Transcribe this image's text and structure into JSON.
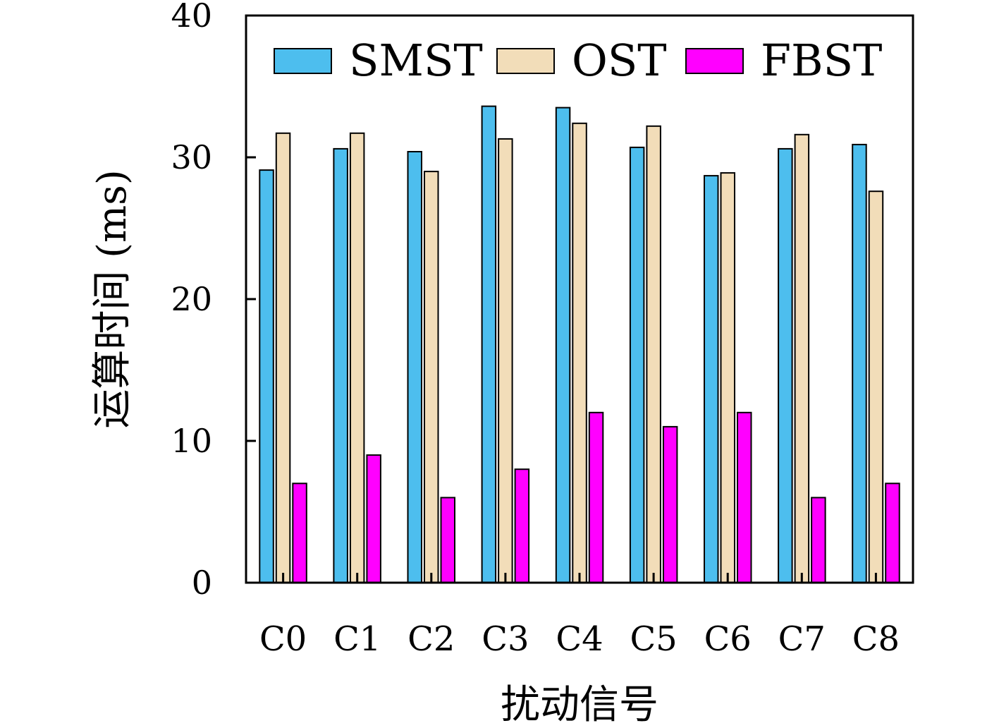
{
  "chart_data": {
    "type": "bar",
    "xlabel": "扰动信号",
    "ylabel": "运算时间 (ms)",
    "ylim": [
      0,
      40
    ],
    "yticks": [
      0,
      10,
      20,
      30,
      40
    ],
    "grid": false,
    "legend_position": "top",
    "categories": [
      "C0",
      "C1",
      "C2",
      "C3",
      "C4",
      "C5",
      "C6",
      "C7",
      "C8"
    ],
    "series": [
      {
        "name": "SMST",
        "color": "#4dbeee",
        "values": [
          29.1,
          30.6,
          30.4,
          33.6,
          33.5,
          30.7,
          28.7,
          30.6,
          30.9
        ]
      },
      {
        "name": "OST",
        "color": "#f2ddb9",
        "values": [
          31.7,
          31.7,
          29.0,
          31.3,
          32.4,
          32.2,
          28.9,
          31.6,
          27.6
        ]
      },
      {
        "name": "FBST",
        "color": "#ff00ff",
        "values": [
          7.0,
          9.0,
          6.0,
          8.0,
          12.0,
          11.0,
          12.0,
          6.0,
          7.0
        ]
      }
    ]
  }
}
